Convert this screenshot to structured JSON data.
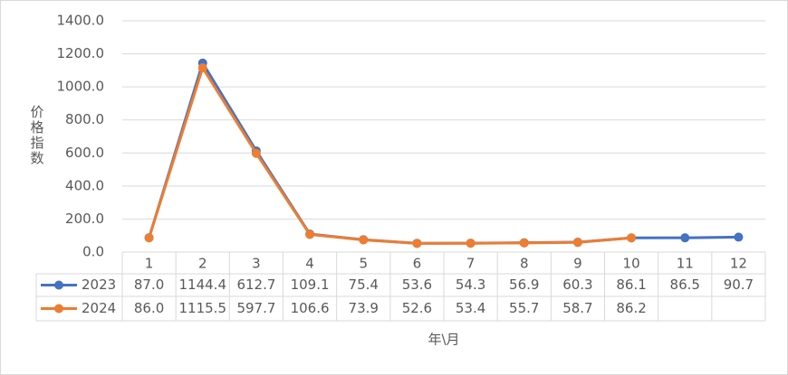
{
  "chart_data": {
    "type": "line",
    "y_label": "价格指数",
    "x_label": "年\\月",
    "categories": [
      "1",
      "2",
      "3",
      "4",
      "5",
      "6",
      "7",
      "8",
      "9",
      "10",
      "11",
      "12"
    ],
    "series": [
      {
        "name": "2023",
        "color": "#4472c4",
        "values": [
          87.0,
          1144.4,
          612.7,
          109.1,
          75.4,
          53.6,
          54.3,
          56.9,
          60.3,
          86.1,
          86.5,
          90.7
        ],
        "value_labels": [
          "87.0",
          "1144.4",
          "612.7",
          "109.1",
          "75.4",
          "53.6",
          "54.3",
          "56.9",
          "60.3",
          "86.1",
          "86.5",
          "90.7"
        ]
      },
      {
        "name": "2024",
        "color": "#ed7d31",
        "values": [
          86.0,
          1115.5,
          597.7,
          106.6,
          73.9,
          52.6,
          53.4,
          55.7,
          58.7,
          86.2,
          null,
          null
        ],
        "value_labels": [
          "86.0",
          "1115.5",
          "597.7",
          "106.6",
          "73.9",
          "52.6",
          "53.4",
          "55.7",
          "58.7",
          "86.2",
          null,
          null
        ]
      }
    ],
    "ylim": [
      0,
      1400
    ],
    "yticks": [
      {
        "value": 0,
        "label": "0.0"
      },
      {
        "value": 200,
        "label": "200.0"
      },
      {
        "value": 400,
        "label": "400.0"
      },
      {
        "value": 600,
        "label": "600.0"
      },
      {
        "value": 800,
        "label": "800.0"
      },
      {
        "value": 1000,
        "label": "1000.0"
      },
      {
        "value": 1200,
        "label": "1200.0"
      },
      {
        "value": 1400,
        "label": "1400.0"
      }
    ],
    "grid": true
  }
}
